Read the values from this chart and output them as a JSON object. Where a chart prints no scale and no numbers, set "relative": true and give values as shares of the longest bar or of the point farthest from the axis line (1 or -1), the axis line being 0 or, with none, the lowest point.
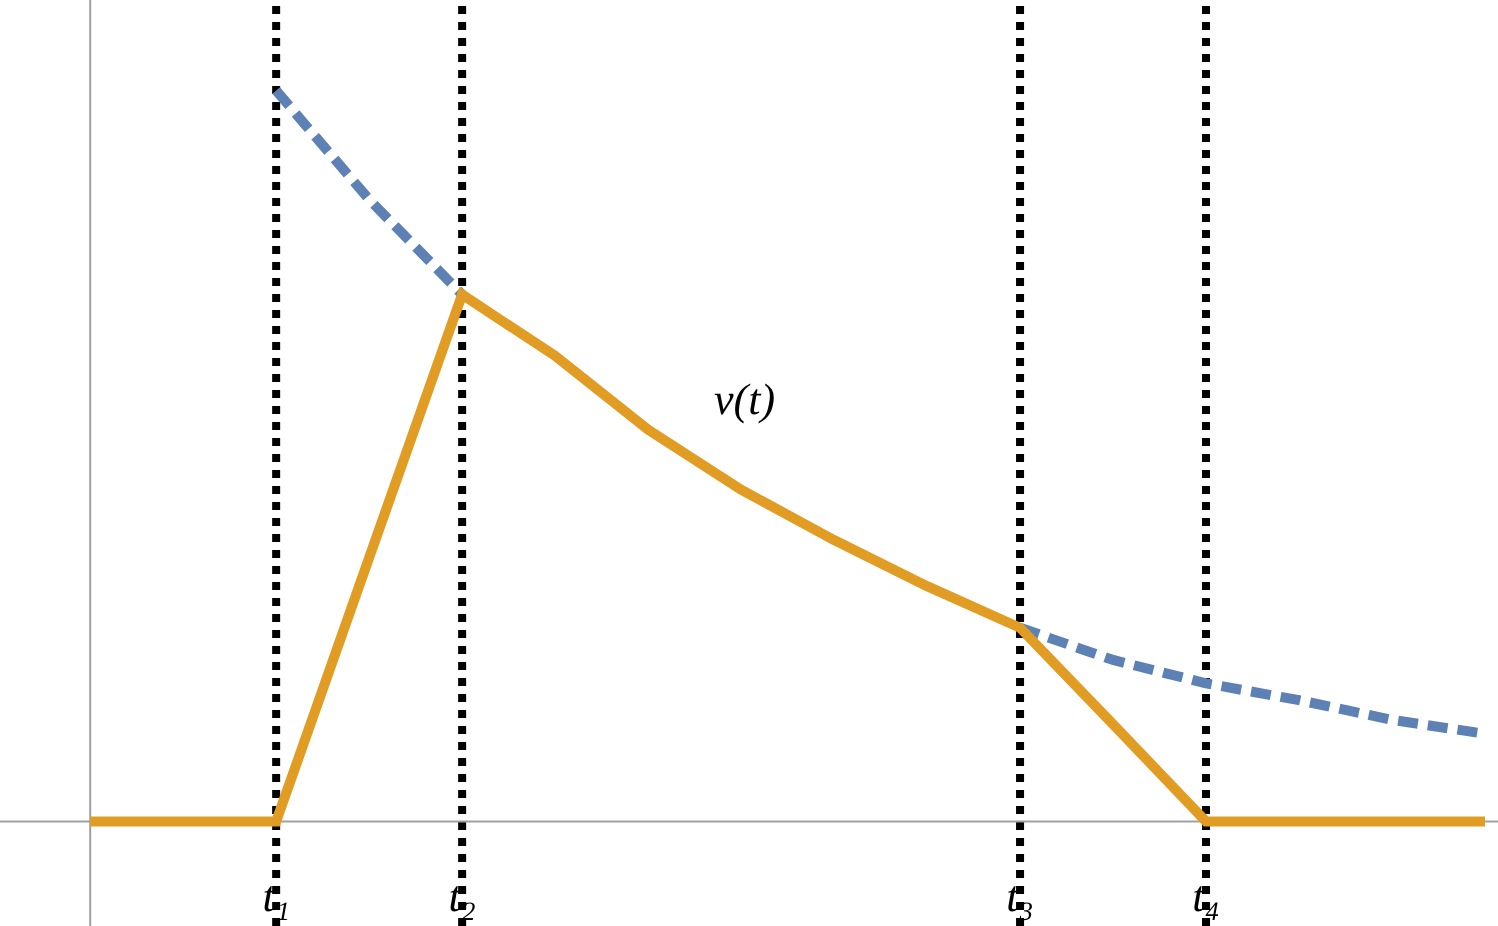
{
  "chart_data": {
    "type": "line",
    "relative": true,
    "grid": false,
    "marker": "none",
    "categories": [
      null,
      null,
      "t₁",
      null,
      "t₂",
      null,
      null,
      null,
      null,
      null,
      "t₃",
      null,
      "t₄",
      null,
      null,
      null
    ],
    "series": [
      {
        "color": "#5e81b5",
        "line_style": "dashed",
        "values": [
          null,
          null,
          1,
          0.851,
          0.721,
          null,
          null,
          null,
          null,
          null,
          0.265,
          0.221,
          0.189,
          0.166,
          0.139,
          0.12
        ]
      },
      {
        "color": "#e19c24",
        "line_style": "solid",
        "values": [
          0,
          0,
          0,
          0.361,
          0.721,
          0.637,
          0.536,
          0.454,
          0.385,
          0.322,
          0.265,
          0.133,
          0,
          0,
          0,
          0
        ]
      }
    ],
    "ref_lines": [
      {
        "axis": "x",
        "value": "t₁",
        "color": "#000000",
        "line_style": "dotted"
      },
      {
        "axis": "x",
        "value": "t₂",
        "color": "#000000",
        "line_style": "dotted"
      },
      {
        "axis": "x",
        "value": "t₃",
        "color": "#000000",
        "line_style": "dotted"
      },
      {
        "axis": "x",
        "value": "t₄",
        "color": "#000000",
        "line_style": "dotted"
      }
    ],
    "annotations": [
      "v(t)"
    ]
  }
}
